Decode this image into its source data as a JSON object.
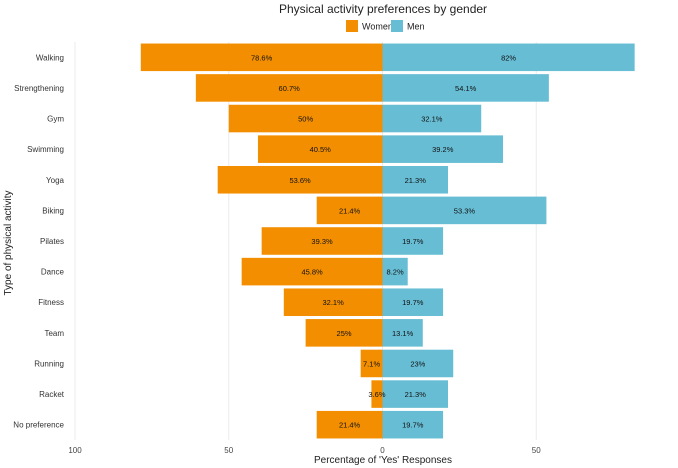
{
  "chart_data": {
    "type": "bar",
    "orientation": "horizontal-diverging",
    "title": "Physical activity preferences by gender",
    "xlabel": "Percentage of 'Yes' Responses",
    "ylabel": "Type of physical activity",
    "xlim": [
      -100,
      100
    ],
    "xticks": [
      {
        "value": -100,
        "label": "100"
      },
      {
        "value": -50,
        "label": "50"
      },
      {
        "value": 0,
        "label": "0"
      },
      {
        "value": 50,
        "label": "50"
      },
      {
        "value": 100,
        "label": "100"
      }
    ],
    "legend_position": "top",
    "categories": [
      "Walking",
      "Strengthening",
      "Gym",
      "Swimming",
      "Yoga",
      "Biking",
      "Pilates",
      "Dance",
      "Fitness",
      "Team",
      "Running",
      "Racket",
      "No preference"
    ],
    "series": [
      {
        "name": "Women",
        "color": "#F28E00",
        "direction": "left",
        "values": [
          78.6,
          60.7,
          50,
          40.5,
          53.6,
          21.4,
          39.3,
          45.8,
          32.1,
          25,
          7.1,
          3.6,
          21.4
        ],
        "labels": [
          "78.6%",
          "60.7%",
          "50%",
          "40.5%",
          "53.6%",
          "21.4%",
          "39.3%",
          "45.8%",
          "32.1%",
          "25%",
          "7.1%",
          "3.6%",
          "21.4%"
        ]
      },
      {
        "name": "Men",
        "color": "#67BDD4",
        "direction": "right",
        "values": [
          82,
          54.1,
          32.1,
          39.2,
          21.3,
          53.3,
          19.7,
          8.2,
          19.7,
          13.1,
          23,
          21.3,
          19.7
        ],
        "labels": [
          "82%",
          "54.1%",
          "32.1%",
          "39.2%",
          "21.3%",
          "53.3%",
          "19.7%",
          "8.2%",
          "19.7%",
          "13.1%",
          "23%",
          "21.3%",
          "19.7%"
        ]
      }
    ]
  }
}
